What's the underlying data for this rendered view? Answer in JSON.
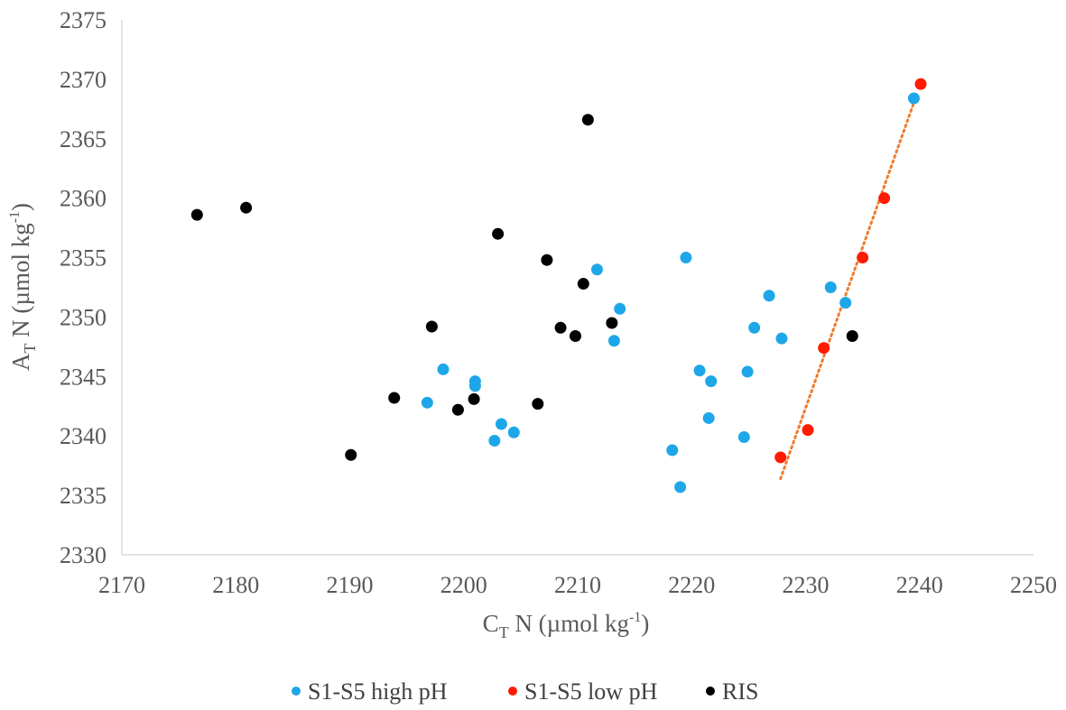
{
  "chart_data": {
    "type": "scatter",
    "title": "",
    "xlabel": {
      "main": "C",
      "sub": "T",
      "rest": " N (µmol kg",
      "sup": "-1",
      "end": ")"
    },
    "ylabel": {
      "main": "A",
      "sub": "T",
      "rest": " N (µmol kg",
      "sup": "-1",
      "end": ")"
    },
    "xlim": [
      2170,
      2250
    ],
    "ylim": [
      2330,
      2375
    ],
    "xticks": [
      2170,
      2180,
      2190,
      2200,
      2210,
      2220,
      2230,
      2240,
      2250
    ],
    "yticks": [
      2330,
      2335,
      2340,
      2345,
      2350,
      2355,
      2360,
      2365,
      2370,
      2375
    ],
    "grid": false,
    "legend_position": "bottom",
    "series": [
      {
        "name": "S1-S5 high pH",
        "color": "#1ea7e8",
        "points": [
          [
            2196.8,
            2342.8
          ],
          [
            2198.2,
            2345.6
          ],
          [
            2201.0,
            2344.6
          ],
          [
            2201.0,
            2344.2
          ],
          [
            2202.7,
            2339.6
          ],
          [
            2203.3,
            2341.0
          ],
          [
            2204.4,
            2340.3
          ],
          [
            2211.7,
            2354.0
          ],
          [
            2213.2,
            2348.0
          ],
          [
            2213.7,
            2350.7
          ],
          [
            2218.3,
            2338.8
          ],
          [
            2219.0,
            2335.7
          ],
          [
            2219.5,
            2355.0
          ],
          [
            2220.7,
            2345.5
          ],
          [
            2221.5,
            2341.5
          ],
          [
            2221.7,
            2344.6
          ],
          [
            2224.6,
            2339.9
          ],
          [
            2224.9,
            2345.4
          ],
          [
            2225.5,
            2349.1
          ],
          [
            2226.8,
            2351.8
          ],
          [
            2227.9,
            2348.2
          ],
          [
            2232.2,
            2352.5
          ],
          [
            2233.5,
            2351.2
          ],
          [
            2239.5,
            2368.4
          ]
        ]
      },
      {
        "name": "S1-S5 low pH",
        "color": "#ff1a00",
        "points": [
          [
            2227.8,
            2338.2
          ],
          [
            2230.2,
            2340.5
          ],
          [
            2231.6,
            2347.4
          ],
          [
            2235.0,
            2355.0
          ],
          [
            2236.9,
            2360.0
          ],
          [
            2240.1,
            2369.6
          ]
        ],
        "trendline": {
          "style": "dotted",
          "color": "#ed7d31",
          "x": [
            2227.8,
            2239.6
          ],
          "y": [
            2336.4,
            2368.3
          ]
        }
      },
      {
        "name": "RIS",
        "color": "#000000",
        "points": [
          [
            2176.6,
            2358.6
          ],
          [
            2180.9,
            2359.2
          ],
          [
            2190.1,
            2338.4
          ],
          [
            2193.9,
            2343.2
          ],
          [
            2197.2,
            2349.2
          ],
          [
            2199.5,
            2342.2
          ],
          [
            2200.9,
            2343.1
          ],
          [
            2203.0,
            2357.0
          ],
          [
            2206.5,
            2342.7
          ],
          [
            2207.3,
            2354.8
          ],
          [
            2208.5,
            2349.1
          ],
          [
            2209.8,
            2348.4
          ],
          [
            2210.5,
            2352.8
          ],
          [
            2210.9,
            2366.6
          ],
          [
            2213.0,
            2349.5
          ],
          [
            2234.1,
            2348.4
          ]
        ]
      }
    ]
  }
}
